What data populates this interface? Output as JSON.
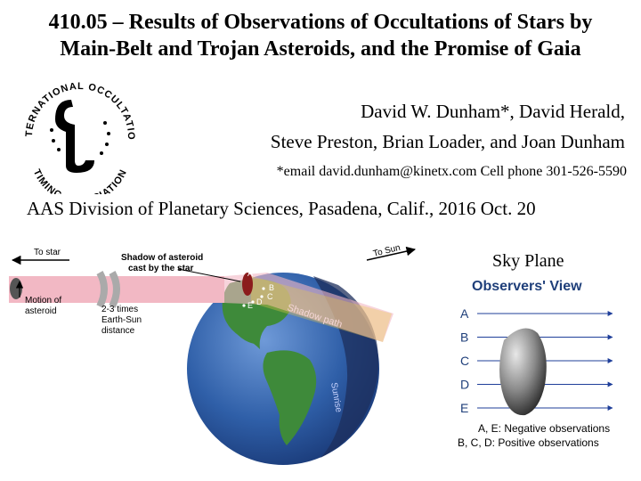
{
  "title": {
    "line1": "410.05 – Results of Observations of Occultations of Stars by",
    "line2": "Main-Belt and Trojan Asteroids, and the Promise of Gaia"
  },
  "logo": {
    "text_top": "INTERNATIONAL OCCULTATION",
    "text_bottom": "TIMING ASSOCIATION",
    "icon": "iota-logo"
  },
  "authors": {
    "line1": "David W. Dunham*, David Herald,",
    "line2": "Steve Preston, Brian Loader, and Joan Dunham"
  },
  "contact": "*email david.dunham@kinetx.com  Cell phone 301-526-5590",
  "conference": "AAS Division of Planetary Sciences, Pasadena, Calif., 2016 Oct. 20",
  "diagram": {
    "to_star": "To star",
    "shadow_label_1": "Shadow of asteroid",
    "shadow_label_2": "cast by the star",
    "to_sun": "To Sun",
    "motion_1": "Motion of",
    "motion_2": "asteroid",
    "distance_1": "2-3 times",
    "distance_2": "Earth-Sun",
    "distance_3": "distance",
    "shadow_path": "Shadow path",
    "sunrise": "Sunrise",
    "points": [
      "A",
      "B",
      "C",
      "D",
      "E"
    ],
    "colors": {
      "beam": "#f2b8c4",
      "ocean": "#2f5fa8",
      "land": "#3e8a3a",
      "night": "#1d2f5c",
      "asteroid": "#8b1c1c"
    }
  },
  "sky_plane": {
    "label": "Sky Plane",
    "heading": "Observers' View",
    "chords": [
      "A",
      "B",
      "C",
      "D",
      "E"
    ],
    "legend_1": "A, E: Negative observations",
    "legend_2": "B, C, D: Positive observations",
    "heading_color": "#1f3f7a",
    "arrow_color": "#1f3f9a"
  }
}
